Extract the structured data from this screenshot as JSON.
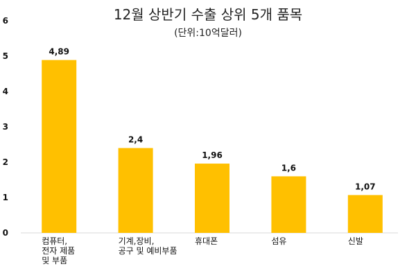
{
  "chart_data": {
    "type": "bar",
    "title": "12월 상반기 수출 상위 5개 품목",
    "subtitle": "(단위:10억달러)",
    "categories": [
      [
        "컴퓨터,",
        "전자 제품",
        "및 부품"
      ],
      [
        "기계,장비,",
        "공구 및 예비부품"
      ],
      [
        "휴대폰"
      ],
      [
        "섬유"
      ],
      [
        "신발"
      ]
    ],
    "values": [
      4.89,
      2.4,
      1.96,
      1.6,
      1.07
    ],
    "value_labels": [
      "4,89",
      "2,4",
      "1,96",
      "1,6",
      "1,07"
    ],
    "ylim": [
      0,
      6
    ],
    "yticks": [
      0,
      1,
      2,
      3,
      4,
      5,
      6
    ],
    "grid": false,
    "legend": "none",
    "colors": {
      "bar": "#FFC000",
      "axis": "#D9D9D9",
      "text": "#111111"
    }
  }
}
